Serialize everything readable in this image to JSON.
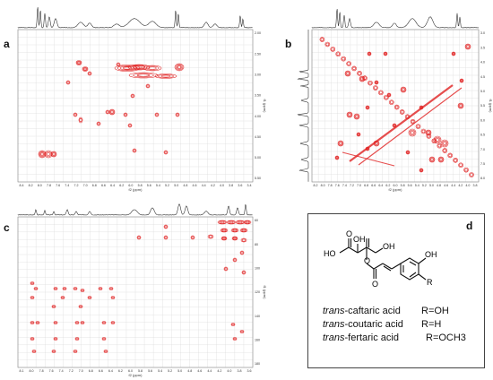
{
  "panels": {
    "a": {
      "letter": "a",
      "xlabel": "f2 (ppm)",
      "ylabel": "f1 (ppm)",
      "xticks": [
        "8.4",
        "8.2",
        "8.0",
        "7.8",
        "7.6",
        "7.4",
        "7.2",
        "7.0",
        "6.8",
        "6.6",
        "6.4",
        "6.2",
        "6.0",
        "5.8",
        "5.6",
        "5.4",
        "5.2",
        "5.0",
        "4.8",
        "4.6",
        "4.4",
        "4.2",
        "4.0",
        "3.8",
        "3.6",
        "3.4"
      ],
      "yticks": [
        "2.00",
        "2.50",
        "3.00",
        "3.50",
        "4.00",
        "4.50",
        "5.00",
        "5.50"
      ]
    },
    "b": {
      "letter": "b",
      "xlabel": "f2 (ppm)",
      "ylabel": "f1 (ppm)",
      "xticks": [
        "8.2",
        "8.0",
        "7.8",
        "7.6",
        "7.4",
        "7.2",
        "7.0",
        "6.8",
        "6.6",
        "6.4",
        "6.2",
        "6.0",
        "5.8",
        "5.6",
        "5.4",
        "5.2",
        "5.0",
        "4.8",
        "4.6",
        "4.4",
        "4.2",
        "4.0",
        "3.8"
      ],
      "yticks": [
        "3.0",
        "3.5",
        "4.0",
        "4.5",
        "5.0",
        "5.5",
        "6.0",
        "6.5",
        "7.0",
        "7.5",
        "8.0"
      ]
    },
    "c": {
      "letter": "c",
      "xlabel": "f2 (ppm)",
      "ylabel": "f1 (ppm)",
      "xticks": [
        "8.1",
        "8.0",
        "7.8",
        "7.6",
        "7.4",
        "7.2",
        "7.0",
        "6.8",
        "6.6",
        "6.4",
        "6.2",
        "6.0",
        "5.8",
        "5.6",
        "5.4",
        "5.2",
        "5.0",
        "4.8",
        "4.6",
        "4.4",
        "4.2",
        "4.0",
        "3.8",
        "3.6"
      ],
      "yticks": [
        "60",
        "80",
        "100",
        "120",
        "140",
        "160",
        "180"
      ]
    },
    "d": {
      "letter": "d",
      "structure_labels": {
        "oh_left": "HO",
        "oh_top": "OH",
        "o_top": "O",
        "oh_right": "OH",
        "o_bottom": "O",
        "o_ester": "O",
        "r": "R"
      },
      "compounds": [
        {
          "prefix": "trans",
          "name": "-caftaric acid",
          "r": "R=OH"
        },
        {
          "prefix": "trans",
          "name": "-coutaric acid",
          "r": "R=H"
        },
        {
          "prefix": "trans",
          "name": "-fertaric acid",
          "r": "R=OCH3"
        }
      ]
    }
  },
  "colors": {
    "contour": "#e02020",
    "grid": "#dadada",
    "trace": "#333333",
    "frame": "#888888"
  }
}
